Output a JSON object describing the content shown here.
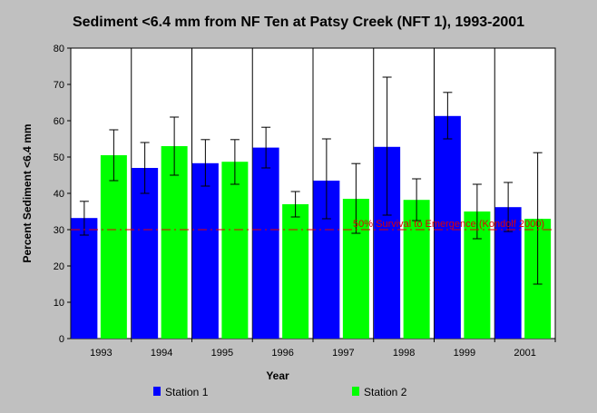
{
  "chart_data": {
    "type": "bar",
    "title": "Sediment <6.4 mm from NF Ten at Patsy Creek (NFT 1), 1993-2001",
    "xlabel": "Year",
    "ylabel": "Percent Sediment <6.4 mm",
    "ylim": [
      0,
      80
    ],
    "yticks": [
      0,
      10,
      20,
      30,
      40,
      50,
      60,
      70,
      80
    ],
    "categories": [
      "1993",
      "1994",
      "1995",
      "1996",
      "1997",
      "1998",
      "1999",
      "2001"
    ],
    "grid": "vertical category separators",
    "legend_position": "bottom",
    "series": [
      {
        "name": "Station 1",
        "color": "#0000ff",
        "values": [
          33.2,
          47.0,
          48.3,
          52.6,
          43.5,
          52.8,
          61.3,
          36.2
        ],
        "error_low": [
          28.5,
          40.0,
          42.0,
          47.0,
          33.0,
          34.0,
          55.0,
          29.5
        ],
        "error_high": [
          37.8,
          54.0,
          54.8,
          58.2,
          55.0,
          72.0,
          67.8,
          43.0
        ]
      },
      {
        "name": "Station 2",
        "color": "#00ff00",
        "values": [
          50.5,
          53.0,
          48.7,
          37.0,
          38.5,
          38.2,
          35.0,
          33.0
        ],
        "error_low": [
          43.5,
          45.0,
          42.5,
          33.5,
          29.0,
          32.5,
          27.5,
          15.0
        ],
        "error_high": [
          57.5,
          61.0,
          54.8,
          40.5,
          48.2,
          44.0,
          42.5,
          51.2
        ]
      }
    ],
    "reference_line": {
      "value": 30,
      "label": "50% Survival to Emergence (Kondolf 2000)",
      "color": "#e00000"
    }
  }
}
